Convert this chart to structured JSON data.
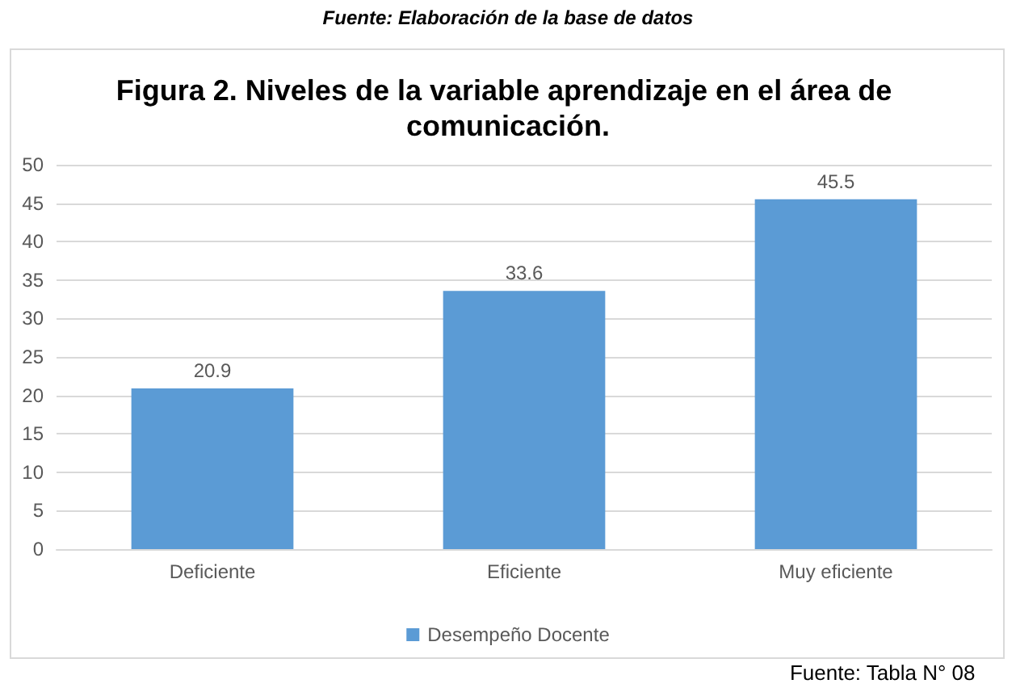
{
  "chart_data": {
    "type": "bar",
    "title": "Figura 2. Niveles de la variable aprendizaje en el área de comunicación.",
    "categories": [
      "Deficiente",
      "Eficiente",
      "Muy eficiente"
    ],
    "series": [
      {
        "name": "Desempeño Docente",
        "color": "#5b9bd5",
        "values": [
          20.9,
          33.6,
          45.5
        ]
      }
    ],
    "ylim": [
      0,
      50
    ],
    "yticks": [
      0,
      5,
      10,
      15,
      20,
      25,
      30,
      35,
      40,
      45,
      50
    ],
    "grid": "y",
    "legend": "bottom",
    "data_labels": true,
    "annotations": [
      "Fuente: Elaboración de la base de datos",
      "Fuente: Tabla N° 08"
    ]
  }
}
